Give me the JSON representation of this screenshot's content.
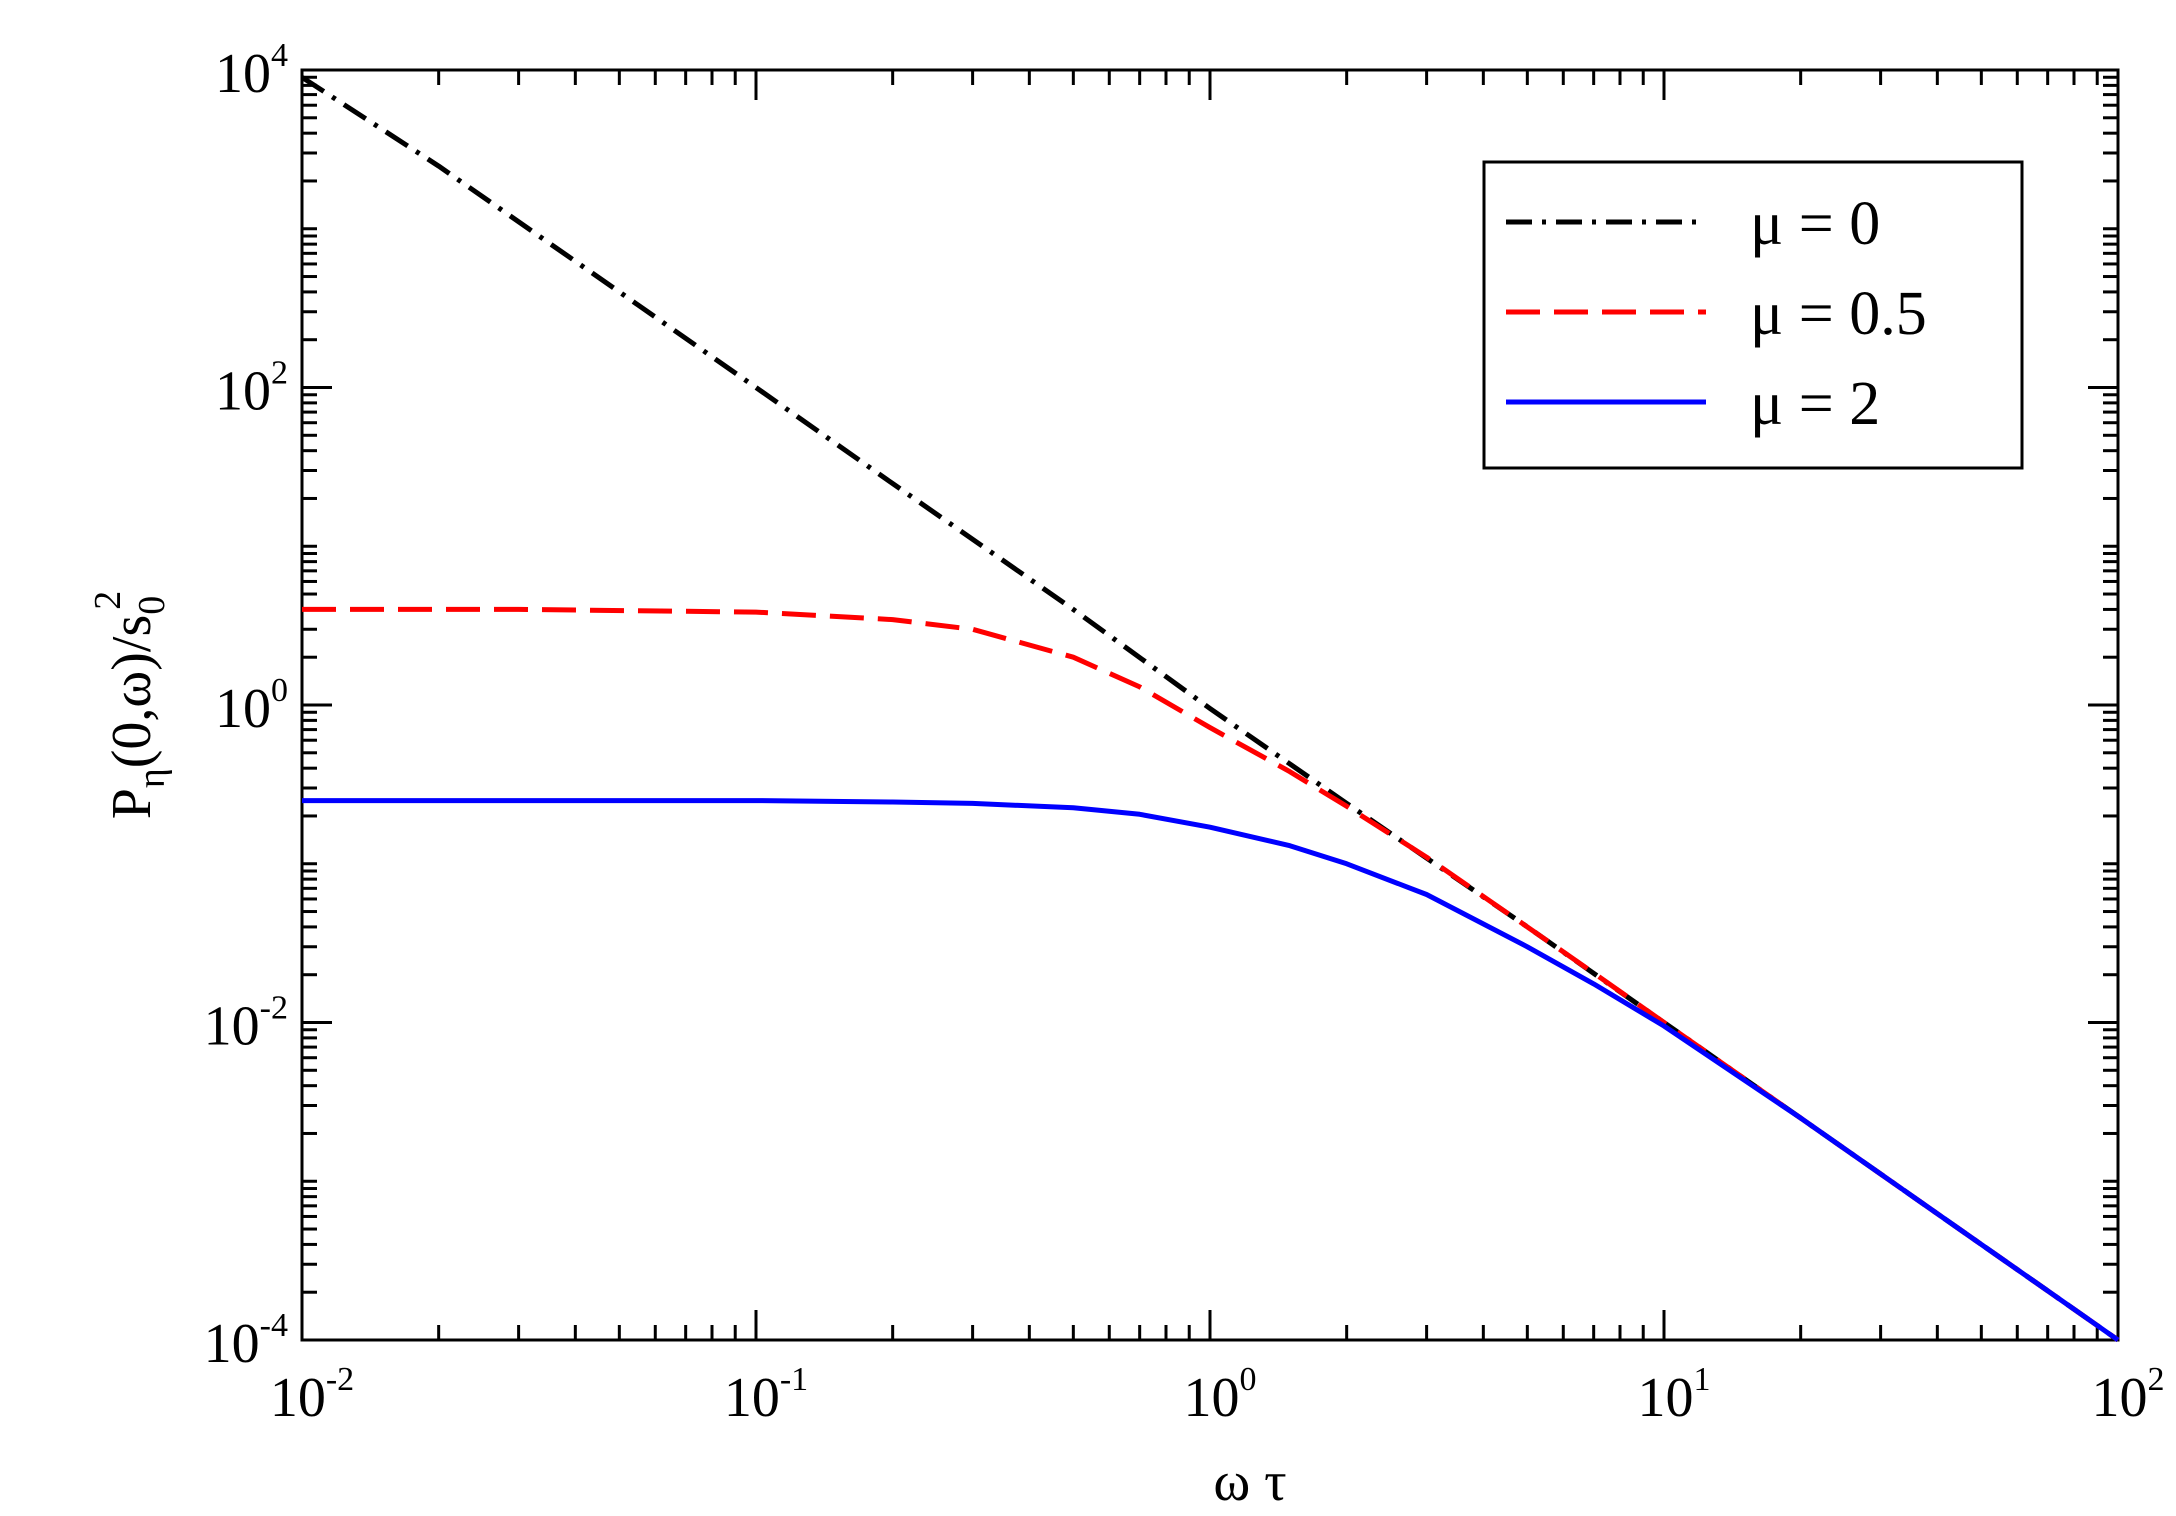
{
  "chart_data": {
    "type": "line",
    "title": "",
    "xlabel": "ω τ",
    "ylabel": {
      "main_1": "P",
      "sub_1": "η",
      "main_2": "(0,ω)/s",
      "sub_2": "0",
      "sup": "2"
    },
    "xscale": "log",
    "yscale": "log",
    "xlim": [
      0.01,
      100
    ],
    "ylim": [
      0.0001,
      10000
    ],
    "grid": false,
    "legend_position": "top-right",
    "x_ticks": [
      {
        "base": "10",
        "exp": "-2",
        "value": 0.01
      },
      {
        "base": "10",
        "exp": "-1",
        "value": 0.1
      },
      {
        "base": "10",
        "exp": "0",
        "value": 1
      },
      {
        "base": "10",
        "exp": "1",
        "value": 10
      },
      {
        "base": "10",
        "exp": "2",
        "value": 100
      }
    ],
    "y_ticks": [
      {
        "base": "10",
        "exp": "-4",
        "value": 0.0001
      },
      {
        "base": "10",
        "exp": "-2",
        "value": 0.01
      },
      {
        "base": "10",
        "exp": "0",
        "value": 1
      },
      {
        "base": "10",
        "exp": "2",
        "value": 100
      },
      {
        "base": "10",
        "exp": "4",
        "value": 10000
      }
    ],
    "series": [
      {
        "name": "μ = 0",
        "color": "#000000",
        "style": "dash-dot",
        "x": [
          0.01,
          0.02,
          0.05,
          0.1,
          0.2,
          0.5,
          1,
          2,
          5,
          10,
          20,
          50,
          100
        ],
        "y": [
          9000,
          2480,
          400,
          100,
          24.8,
          4.0,
          0.95,
          0.24,
          0.04,
          0.01,
          0.0025,
          0.0004,
          0.0001
        ]
      },
      {
        "name": "μ = 0.5",
        "color": "#ff0000",
        "style": "dashed",
        "x": [
          0.01,
          0.03,
          0.1,
          0.2,
          0.3,
          0.5,
          0.7,
          1,
          1.5,
          2,
          3,
          5,
          7,
          10,
          20,
          50,
          100
        ],
        "y": [
          4.0,
          4.0,
          3.85,
          3.45,
          3.0,
          2.0,
          1.3,
          0.72,
          0.38,
          0.23,
          0.11,
          0.04,
          0.0205,
          0.01,
          0.0025,
          0.0004,
          0.0001
        ]
      },
      {
        "name": "μ = 2",
        "color": "#0000ff",
        "style": "solid",
        "x": [
          0.01,
          0.1,
          0.2,
          0.3,
          0.5,
          0.7,
          1,
          1.5,
          2,
          3,
          5,
          7,
          10,
          20,
          50,
          100
        ],
        "y": [
          0.25,
          0.25,
          0.245,
          0.24,
          0.225,
          0.205,
          0.17,
          0.13,
          0.1,
          0.064,
          0.03,
          0.0175,
          0.0095,
          0.0025,
          0.0004,
          0.0001
        ]
      }
    ]
  }
}
